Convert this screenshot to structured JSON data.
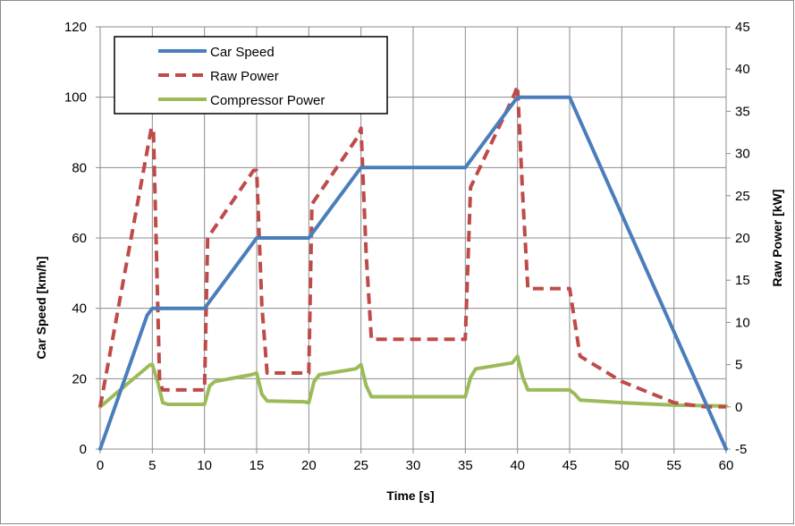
{
  "chart_data": {
    "type": "line",
    "title": "",
    "xlabel": "Time [s]",
    "ylabel_left": "Car Speed  [km/h]",
    "ylabel_right": "Raw Power  [kW]",
    "xlim": [
      0,
      60
    ],
    "ylim_left": [
      0,
      120
    ],
    "ylim_right": [
      -5,
      45
    ],
    "x_ticks": [
      0,
      5,
      10,
      15,
      20,
      25,
      30,
      35,
      40,
      45,
      50,
      55,
      60
    ],
    "y_ticks_left": [
      0,
      20,
      40,
      60,
      80,
      100,
      120
    ],
    "y_ticks_right": [
      -5,
      0,
      5,
      10,
      15,
      20,
      25,
      30,
      35,
      40,
      45
    ],
    "grid": true,
    "legend_position": "top-left",
    "series": [
      {
        "name": "Car Speed",
        "axis": "left",
        "color": "#4a7ebb",
        "style": "solid",
        "x": [
          0,
          4.5,
          5,
          5.5,
          9.5,
          10,
          14.5,
          15,
          15.5,
          19.5,
          20,
          24.5,
          25,
          25.5,
          34.5,
          35,
          39.5,
          40,
          40.5,
          44.5,
          45,
          60
        ],
        "y": [
          0,
          38,
          40,
          40,
          40,
          40,
          58,
          60,
          60,
          60,
          60,
          78,
          80,
          80,
          80,
          80,
          98,
          100,
          100,
          100,
          100,
          0
        ]
      },
      {
        "name": "Raw Power",
        "axis": "right",
        "color": "#be4b48",
        "style": "dashed",
        "x": [
          0,
          0.3,
          4.9,
          5.1,
          5.7,
          6,
          9.7,
          10,
          10.3,
          14.7,
          15,
          15.5,
          16,
          19.7,
          20,
          20.3,
          24.7,
          25,
          25.5,
          26,
          34.8,
          35,
          35.5,
          39.7,
          40,
          40.5,
          41,
          44.7,
          45,
          46,
          50,
          55,
          58,
          60
        ],
        "y": [
          0,
          2,
          33,
          33,
          3,
          2,
          2,
          2,
          20,
          28,
          28,
          12,
          4,
          4,
          4,
          24,
          32,
          33,
          18,
          8,
          8,
          8,
          26,
          37,
          38,
          25,
          14,
          14,
          14,
          6,
          3,
          0.5,
          0,
          0
        ]
      },
      {
        "name": "Compressor Power",
        "axis": "right",
        "color": "#9bbb59",
        "style": "solid",
        "x": [
          0,
          4.8,
          5,
          5.5,
          6,
          6.5,
          9.5,
          10,
          10.5,
          11,
          14.5,
          15,
          15.5,
          16,
          19.5,
          20,
          20.5,
          21,
          24.5,
          25,
          25.5,
          26,
          34.5,
          35,
          35.5,
          36,
          39.5,
          40,
          40.5,
          41,
          44.5,
          45,
          45.5,
          46,
          50,
          55,
          60
        ],
        "y": [
          0,
          5,
          5,
          3,
          0.5,
          0.3,
          0.3,
          0.3,
          2.5,
          3,
          3.8,
          4,
          1.5,
          0.7,
          0.6,
          0.5,
          3,
          3.8,
          4.5,
          5,
          2.5,
          1.2,
          1.2,
          1.2,
          3.5,
          4.5,
          5.2,
          6,
          3.5,
          2,
          2,
          2,
          1.5,
          0.8,
          0.5,
          0.2,
          0.1
        ]
      }
    ]
  }
}
